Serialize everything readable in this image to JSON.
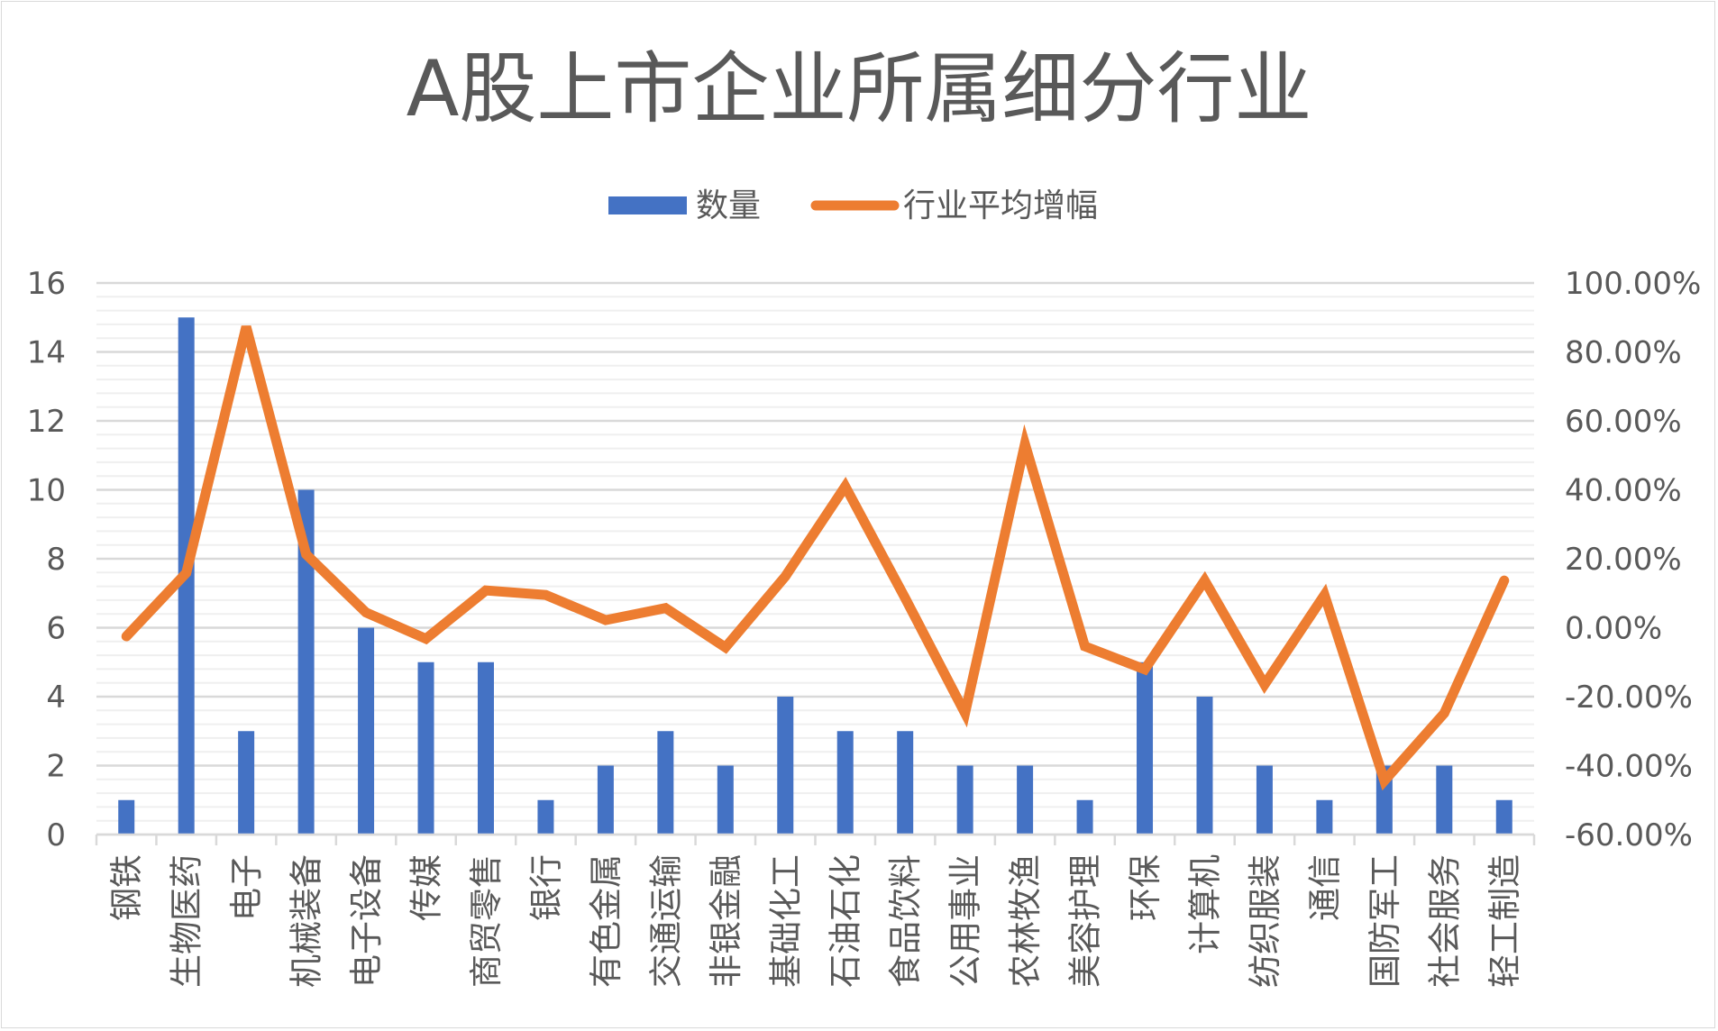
{
  "chart_data": {
    "type": "bar+line",
    "title": "A股上市企业所属细分行业",
    "legend_position": "top",
    "categories": [
      "钢铁",
      "生物医药",
      "电子",
      "机械装备",
      "电子设备",
      "传媒",
      "商贸零售",
      "银行",
      "有色金属",
      "交通运输",
      "非银金融",
      "基础化工",
      "石油石化",
      "食品饮料",
      "公用事业",
      "农林牧渔",
      "美容护理",
      "环保",
      "计算机",
      "纺织服装",
      "通信",
      "国防军工",
      "社会服务",
      "轻工制造"
    ],
    "series": [
      {
        "name": "数量",
        "type": "bar",
        "axis": "left",
        "color": "#4472C4",
        "values": [
          1,
          15,
          3,
          10,
          6,
          5,
          5,
          1,
          2,
          3,
          2,
          4,
          3,
          3,
          2,
          2,
          1,
          5,
          4,
          2,
          1,
          2,
          2,
          1
        ]
      },
      {
        "name": "行业平均增幅",
        "type": "line",
        "axis": "right",
        "color": "#ED7D31",
        "values": [
          -2.5,
          15.9,
          87.3,
          21.3,
          4.4,
          -3.2,
          10.8,
          9.5,
          2.2,
          5.7,
          -5.7,
          14.9,
          41.0,
          8.6,
          -24.8,
          53.3,
          -5.4,
          -12.1,
          13.7,
          -16.5,
          9.5,
          -44.4,
          -24.8,
          13.7
        ]
      }
    ],
    "left_axis": {
      "ylim": [
        0,
        16
      ],
      "ticks": [
        "0",
        "2",
        "4",
        "6",
        "8",
        "10",
        "12",
        "14",
        "16"
      ]
    },
    "right_axis": {
      "ylim": [
        -60,
        100
      ],
      "ticks": [
        "-60.00%",
        "-40.00%",
        "-20.00%",
        "0.00%",
        "20.00%",
        "40.00%",
        "60.00%",
        "80.00%",
        "100.00%"
      ]
    },
    "grid": true
  }
}
